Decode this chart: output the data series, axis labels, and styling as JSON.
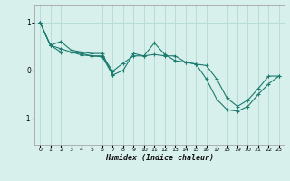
{
  "xlabel": "Humidex (Indice chaleur)",
  "background_color": "#d8f0ec",
  "grid_color": "#b8dcd8",
  "line_color": "#1a7a6e",
  "xlim": [
    -0.5,
    23.5
  ],
  "ylim": [
    -1.55,
    1.35
  ],
  "yticks": [
    -1,
    0,
    1
  ],
  "xticks": [
    0,
    1,
    2,
    3,
    4,
    5,
    6,
    7,
    8,
    9,
    10,
    11,
    12,
    13,
    14,
    15,
    16,
    17,
    18,
    19,
    20,
    21,
    22,
    23
  ],
  "series": [
    {
      "x": [
        0,
        1,
        2,
        3,
        4,
        5,
        6,
        7,
        8,
        9,
        10,
        11,
        12,
        13,
        14,
        15,
        16,
        17,
        18,
        19,
        20,
        21,
        22,
        23
      ],
      "y": [
        1.0,
        0.52,
        0.6,
        0.42,
        0.38,
        0.35,
        0.35,
        -0.1,
        0.0,
        0.35,
        0.3,
        0.57,
        0.33,
        0.2,
        0.17,
        0.13,
        -0.18,
        -0.6,
        -0.82,
        -0.85,
        -0.75,
        -0.5,
        -0.28,
        -0.12
      ]
    },
    {
      "x": [
        0,
        1,
        2,
        3,
        4,
        5,
        6,
        7,
        8,
        9,
        10,
        11,
        12,
        13,
        14,
        15,
        16,
        17,
        18,
        19,
        20,
        21,
        22,
        23
      ],
      "y": [
        1.0,
        0.52,
        0.38,
        0.38,
        0.32,
        0.3,
        0.3,
        -0.02,
        0.15,
        0.3,
        0.3,
        0.33,
        0.3,
        0.3,
        0.17,
        0.13,
        0.1,
        -0.18,
        -0.58,
        -0.75,
        -0.62,
        -0.38,
        -0.12,
        -0.12
      ]
    },
    {
      "x": [
        0,
        1,
        2,
        3,
        4,
        5,
        6,
        7
      ],
      "y": [
        1.0,
        0.52,
        0.45,
        0.38,
        0.35,
        0.3,
        0.28,
        -0.1
      ]
    }
  ]
}
